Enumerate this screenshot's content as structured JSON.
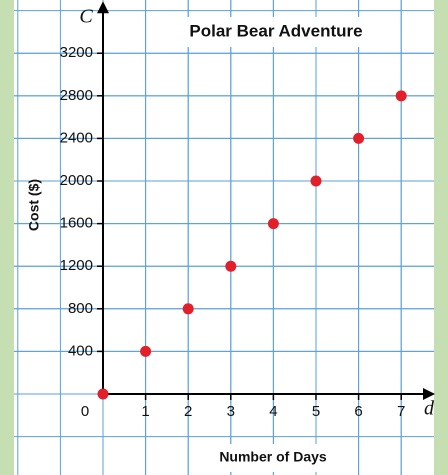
{
  "chart_data": {
    "type": "scatter",
    "title": "Polar Bear Adventure",
    "x_axis_label": "Number of Days",
    "y_axis_label": "Cost ($)",
    "x_variable": "d",
    "y_variable": "C",
    "x": [
      0,
      1,
      2,
      3,
      4,
      5,
      6,
      7
    ],
    "series": [
      {
        "name": "Cost",
        "color": "#e3202a",
        "values": [
          0,
          400,
          800,
          1200,
          1600,
          2000,
          2400,
          2800
        ]
      }
    ],
    "xlim": [
      0,
      7.7
    ],
    "xticks": [
      0,
      1,
      2,
      3,
      4,
      5,
      6,
      7
    ],
    "ylim": [
      0,
      3650
    ],
    "yticks": [
      400,
      800,
      1200,
      1600,
      2000,
      2400,
      2800,
      3200
    ],
    "grid": true
  }
}
